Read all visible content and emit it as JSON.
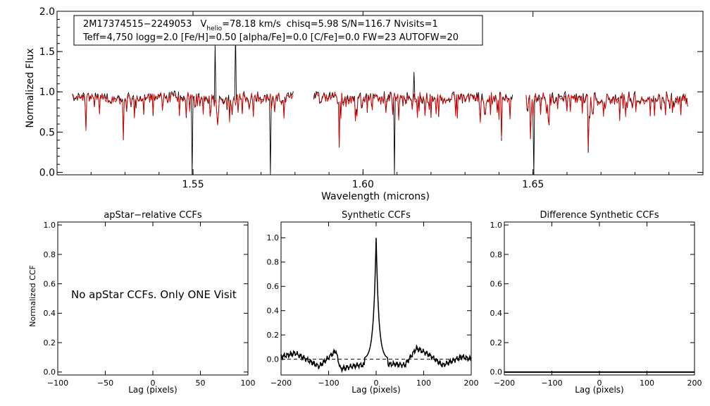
{
  "chart_data": [
    {
      "id": "spectrum",
      "type": "line",
      "xlabel": "Wavelength (microns)",
      "ylabel": "Normalized Flux",
      "xlim": [
        1.51,
        1.7
      ],
      "ylim": [
        -0.03,
        2.0
      ],
      "xticks": [
        {
          "value": 1.55,
          "label": "1.55"
        },
        {
          "value": 1.6,
          "label": "1.60"
        },
        {
          "value": 1.65,
          "label": "1.65"
        }
      ],
      "yticks": [
        {
          "value": 0.0,
          "label": "0.0"
        },
        {
          "value": 0.5,
          "label": "0.5"
        },
        {
          "value": 1.0,
          "label": "1.0"
        },
        {
          "value": 1.5,
          "label": "1.5"
        },
        {
          "value": 2.0,
          "label": "2.0"
        }
      ],
      "annotation": {
        "line1": {
          "star_id": "2M17374515−2249053",
          "v_label": "V",
          "v_sub": "helio",
          "v_value": "=78.18 km/s",
          "rest": "chisq=5.98  S/N=116.7  Nvisits=1"
        },
        "line2": "Teff=4,750 logg=2.0 [Fe/H]=0.50 [alpha/Fe]=0.0 [C/Fe]=0.0 FW=23 AUTOFW=20"
      },
      "chips": [
        [
          1.5145,
          1.5795
        ],
        [
          1.5855,
          1.644
        ],
        [
          1.648,
          1.6955
        ]
      ],
      "continuum_level": 0.93,
      "series": [
        {
          "name": "observed",
          "color": "#000000"
        },
        {
          "name": "model",
          "color": "#e00000"
        }
      ]
    },
    {
      "id": "apstar-ccf",
      "type": "line",
      "title": "apStar−relative CCFs",
      "xlabel": "Lag (pixels)",
      "ylabel": "Normalized CCF",
      "xlim": [
        -100,
        100
      ],
      "ylim": [
        -0.02,
        1.02
      ],
      "xticks": [
        {
          "value": -100,
          "label": "−100"
        },
        {
          "value": -50,
          "label": "−50"
        },
        {
          "value": 0,
          "label": "0"
        },
        {
          "value": 50,
          "label": "50"
        },
        {
          "value": 100,
          "label": "100"
        }
      ],
      "yticks": [
        {
          "value": 0.0,
          "label": "0.0"
        },
        {
          "value": 0.2,
          "label": "0.2"
        },
        {
          "value": 0.4,
          "label": "0.4"
        },
        {
          "value": 0.6,
          "label": "0.6"
        },
        {
          "value": 0.8,
          "label": "0.8"
        },
        {
          "value": 1.0,
          "label": "1.0"
        }
      ],
      "note": "No apStar CCFs.  Only ONE Visit"
    },
    {
      "id": "synthetic-ccf",
      "type": "line",
      "title": "Synthetic CCFs",
      "xlabel": "Lag (pixels)",
      "xlim": [
        -200,
        200
      ],
      "ylim": [
        -0.13,
        1.13
      ],
      "xticks": [
        {
          "value": -200,
          "label": "−200"
        },
        {
          "value": -100,
          "label": "−100"
        },
        {
          "value": 0,
          "label": "0"
        },
        {
          "value": 100,
          "label": "100"
        },
        {
          "value": 200,
          "label": "200"
        }
      ],
      "yticks": [
        {
          "value": 0.0,
          "label": "0.0"
        },
        {
          "value": 0.2,
          "label": "0.2"
        },
        {
          "value": 0.4,
          "label": "0.4"
        },
        {
          "value": 0.6,
          "label": "0.6"
        },
        {
          "value": 0.8,
          "label": "0.8"
        },
        {
          "value": 1.0,
          "label": "1.0"
        }
      ],
      "peak": {
        "lag": 0,
        "value": 1.0
      },
      "baseline": 0.0,
      "noise_features": [
        {
          "lag": -200,
          "value": 0.02
        },
        {
          "lag": -170,
          "value": 0.05
        },
        {
          "lag": -120,
          "value": -0.06
        },
        {
          "lag": -85,
          "value": 0.07
        },
        {
          "lag": -75,
          "value": -0.08
        },
        {
          "lag": -40,
          "value": -0.05
        },
        {
          "lag": 40,
          "value": -0.04
        },
        {
          "lag": 60,
          "value": -0.05
        },
        {
          "lag": 85,
          "value": 0.09
        },
        {
          "lag": 110,
          "value": 0.04
        },
        {
          "lag": 140,
          "value": -0.05
        },
        {
          "lag": 180,
          "value": 0.02
        },
        {
          "lag": 200,
          "value": 0.0
        }
      ]
    },
    {
      "id": "difference-ccf",
      "type": "line",
      "title": "Difference Synthetic CCFs",
      "xlabel": "Lag (pixels)",
      "xlim": [
        -200,
        200
      ],
      "ylim": [
        -0.02,
        1.02
      ],
      "xticks": [
        {
          "value": -200,
          "label": "−200"
        },
        {
          "value": -100,
          "label": "−100"
        },
        {
          "value": 0,
          "label": "0"
        },
        {
          "value": 100,
          "label": "100"
        },
        {
          "value": 200,
          "label": "200"
        }
      ],
      "yticks": [
        {
          "value": 0.0,
          "label": "0.0"
        },
        {
          "value": 0.2,
          "label": "0.2"
        },
        {
          "value": 0.4,
          "label": "0.4"
        },
        {
          "value": 0.6,
          "label": "0.6"
        },
        {
          "value": 0.8,
          "label": "0.8"
        },
        {
          "value": 1.0,
          "label": "1.0"
        }
      ],
      "series_level": 0.0
    }
  ]
}
